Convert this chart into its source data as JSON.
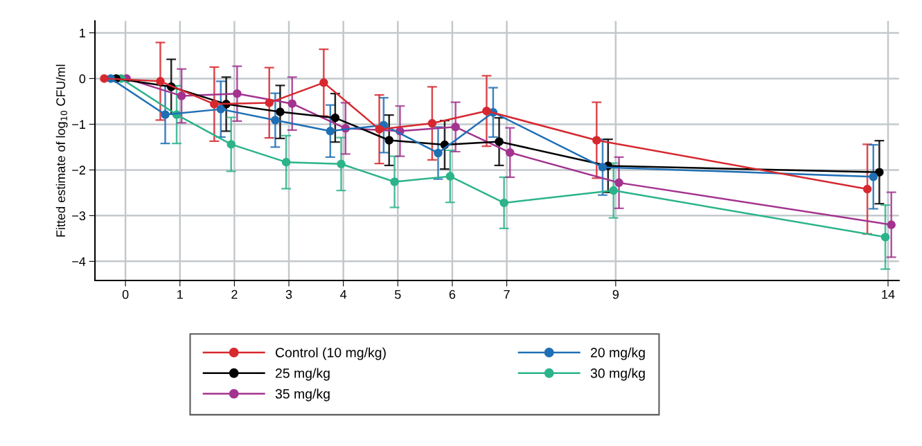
{
  "chart_data": {
    "type": "line",
    "ylabel": "Fitted estimate of log$_{10}$ CFU/ml",
    "xlim": [
      -0.56,
      14.2
    ],
    "xticks": [
      0,
      1,
      2,
      3,
      4,
      5,
      6,
      7,
      9,
      14
    ],
    "ylim": [
      -4.42,
      1.26
    ],
    "yticks": [
      1,
      0,
      {
        "value": -1,
        "label": "−1"
      },
      {
        "value": -2,
        "label": "−2"
      },
      {
        "value": -3,
        "label": "−3"
      },
      {
        "value": -4,
        "label": "−4"
      }
    ],
    "grid": true,
    "legend": "bottom",
    "marker": "circle",
    "line_style": "solid",
    "series": [
      {
        "name": "Control (10 mg/kg)",
        "color": "#d7282f",
        "x": [
          -0.39,
          0.64,
          1.63,
          2.64,
          3.64,
          4.66,
          5.63,
          6.63,
          8.65,
          13.62
        ],
        "values": [
          0,
          -0.06,
          -0.56,
          -0.53,
          -0.09,
          -1.11,
          -0.98,
          -0.71,
          -1.35,
          -2.42
        ],
        "errors": [
          null,
          0.85,
          0.81,
          0.77,
          0.73,
          0.75,
          0.8,
          0.77,
          0.83,
          0.98
        ]
      },
      {
        "name": "20 mg/kg",
        "color": "#1f6fb5",
        "x": [
          -0.27,
          0.73,
          1.75,
          2.75,
          3.76,
          4.74,
          5.74,
          6.75,
          8.76,
          13.73
        ],
        "values": [
          0,
          -0.79,
          -0.67,
          -0.91,
          -1.15,
          -1.02,
          -1.63,
          -0.74,
          -1.94,
          -2.15
        ],
        "errors": [
          null,
          0.63,
          0.61,
          0.59,
          0.57,
          0.6,
          0.57,
          0.54,
          0.61,
          0.7
        ]
      },
      {
        "name": "25 mg/kg",
        "color": "#000000",
        "x": [
          -0.17,
          0.84,
          1.85,
          2.84,
          3.85,
          4.84,
          5.86,
          6.86,
          8.86,
          13.84
        ],
        "values": [
          0,
          -0.18,
          -0.56,
          -0.73,
          -0.86,
          -1.35,
          -1.45,
          -1.38,
          -1.91,
          -2.05
        ],
        "errors": [
          null,
          0.6,
          0.59,
          0.58,
          0.53,
          0.55,
          0.53,
          0.52,
          0.58,
          0.69
        ]
      },
      {
        "name": "30 mg/kg",
        "color": "#2bb38a",
        "x": [
          -0.08,
          0.94,
          1.94,
          2.95,
          3.96,
          4.94,
          5.96,
          6.95,
          8.96,
          13.95
        ],
        "values": [
          0,
          -0.79,
          -1.44,
          -1.83,
          -1.87,
          -2.26,
          -2.14,
          -2.72,
          -2.45,
          -3.47
        ],
        "errors": [
          null,
          0.63,
          0.59,
          0.58,
          0.58,
          0.56,
          0.57,
          0.56,
          0.6,
          0.7
        ]
      },
      {
        "name": "35 mg/kg",
        "color": "#a3338f",
        "x": [
          0.02,
          1.03,
          2.05,
          3.06,
          4.04,
          5.04,
          6.06,
          7.06,
          9.06,
          14.06
        ],
        "values": [
          0,
          -0.38,
          -0.33,
          -0.55,
          -1.09,
          -1.15,
          -1.06,
          -1.62,
          -2.28,
          -3.2
        ],
        "errors": [
          null,
          0.59,
          0.6,
          0.58,
          0.56,
          0.55,
          0.54,
          0.54,
          0.56,
          0.71
        ]
      }
    ]
  }
}
